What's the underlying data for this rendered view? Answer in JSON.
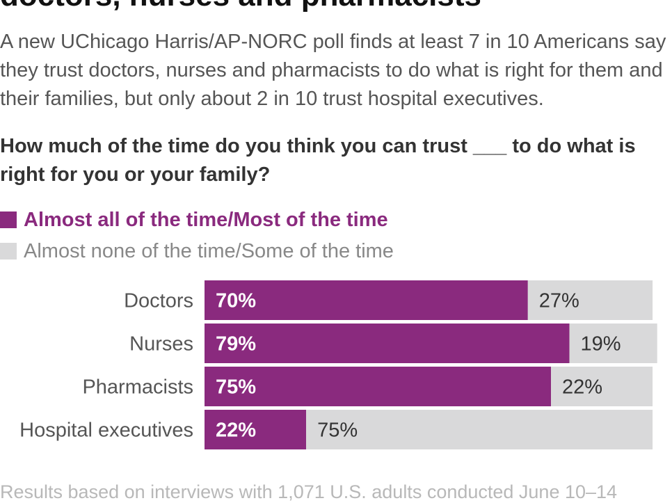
{
  "header": {
    "title": "doctors, nurses and pharmacists",
    "intro": "A new UChicago Harris/AP-NORC poll finds at least 7 in 10 Americans say they trust doctors, nurses and pharmacists to do what is right for them and their families, but only about 2 in 10 trust hospital executives.",
    "question": "How much of the time do you think you can trust ___ to do what is right for you or your family?"
  },
  "colors": {
    "trust": "#8a2a7e",
    "distrust": "#d9d9da"
  },
  "chart_data": {
    "type": "bar",
    "orientation": "horizontal",
    "stacked": true,
    "categories": [
      "Doctors",
      "Nurses",
      "Pharmacists",
      "Hospital executives"
    ],
    "series": [
      {
        "name": "Almost all of the time/Most of the time",
        "values": [
          70,
          79,
          75,
          22
        ]
      },
      {
        "name": "Almost none of the time/Some of the time",
        "values": [
          27,
          19,
          22,
          75
        ]
      }
    ],
    "value_labels": [
      [
        "70%",
        "79%",
        "75%",
        "22%"
      ],
      [
        "27%",
        "19%",
        "22%",
        "75%"
      ]
    ],
    "xlim": [
      0,
      100
    ],
    "grid": false,
    "legend_position": "top-left"
  },
  "footer": {
    "source": "Results based on interviews with 1,071 U.S. adults conducted June 10–14"
  }
}
